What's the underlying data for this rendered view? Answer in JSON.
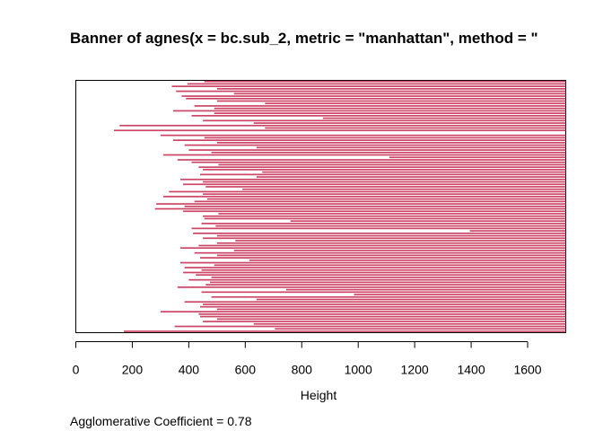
{
  "chart_data": {
    "type": "bar",
    "orientation": "horizontal",
    "title": "Banner of  agnes(x = bc.sub_2, metric = \"manhattan\", method = \"",
    "xlabel": "Height",
    "ylabel": "",
    "xlim": [
      0,
      1735
    ],
    "x_ticks": [
      0,
      200,
      400,
      600,
      800,
      1000,
      1200,
      1400,
      1600
    ],
    "x_tick_labels": [
      "0",
      "200",
      "400",
      "600",
      "800",
      "1000",
      "1200",
      "1400",
      "1600"
    ],
    "bar_color": "#cc4466",
    "background": "#ffffff",
    "grid": false,
    "legend": "none",
    "agglomerative_coefficient": "0.78",
    "coefficient_label": "Agglomerative Coefficient =  0.78",
    "banner_right": 1735,
    "values": [
      455,
      395,
      340,
      500,
      355,
      560,
      375,
      390,
      500,
      670,
      420,
      490,
      345,
      490,
      410,
      875,
      450,
      630,
      155,
      670,
      135,
      1735,
      300,
      455,
      345,
      500,
      385,
      640,
      400,
      480,
      310,
      1110,
      360,
      410,
      505,
      435,
      450,
      660,
      440,
      640,
      370,
      450,
      380,
      460,
      590,
      330,
      450,
      310,
      465,
      420,
      285,
      385,
      280,
      380,
      505,
      450,
      455,
      760,
      445,
      495,
      410,
      1395,
      415,
      500,
      450,
      565,
      500,
      435,
      370,
      560,
      420,
      500,
      440,
      615,
      370,
      490,
      385,
      445,
      380,
      425,
      480,
      400,
      475,
      460,
      360,
      745,
      445,
      985,
      480,
      640,
      385,
      450,
      440,
      500,
      300,
      435,
      440,
      500,
      450,
      630,
      350,
      705,
      170
    ]
  }
}
